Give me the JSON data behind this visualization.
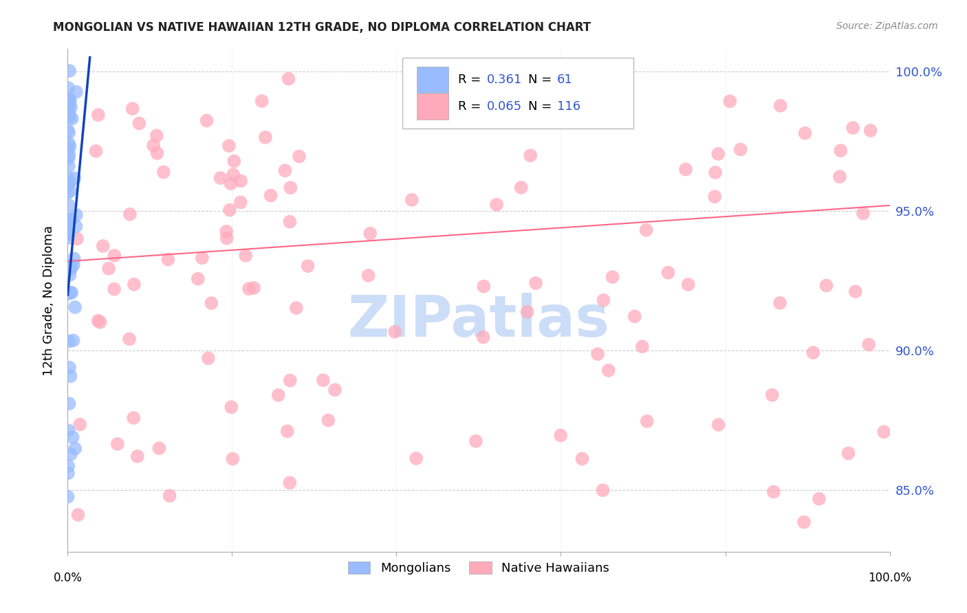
{
  "title": "MONGOLIAN VS NATIVE HAWAIIAN 12TH GRADE, NO DIPLOMA CORRELATION CHART",
  "source": "Source: ZipAtlas.com",
  "ylabel": "12th Grade, No Diploma",
  "legend_mongolian": "Mongolians",
  "legend_hawaiian": "Native Hawaiians",
  "R_mongolian": 0.361,
  "N_mongolian": 61,
  "R_hawaiian": 0.065,
  "N_hawaiian": 116,
  "color_mongolian": "#99BBFF",
  "color_hawaiian": "#FFAABB",
  "color_mongolian_line": "#1144BB",
  "color_hawaiian_line": "#FF6688",
  "xlim": [
    0.0,
    1.0
  ],
  "ylim": [
    0.828,
    1.008
  ],
  "y_tick_values": [
    0.85,
    0.9,
    0.95,
    1.0
  ],
  "watermark": "ZIPatlas",
  "watermark_color": "#CCDDF8",
  "background_color": "#FFFFFF",
  "grid_color": "#CCCCCC",
  "title_color": "#222222",
  "source_color": "#888888",
  "right_tick_color": "#3355CC"
}
